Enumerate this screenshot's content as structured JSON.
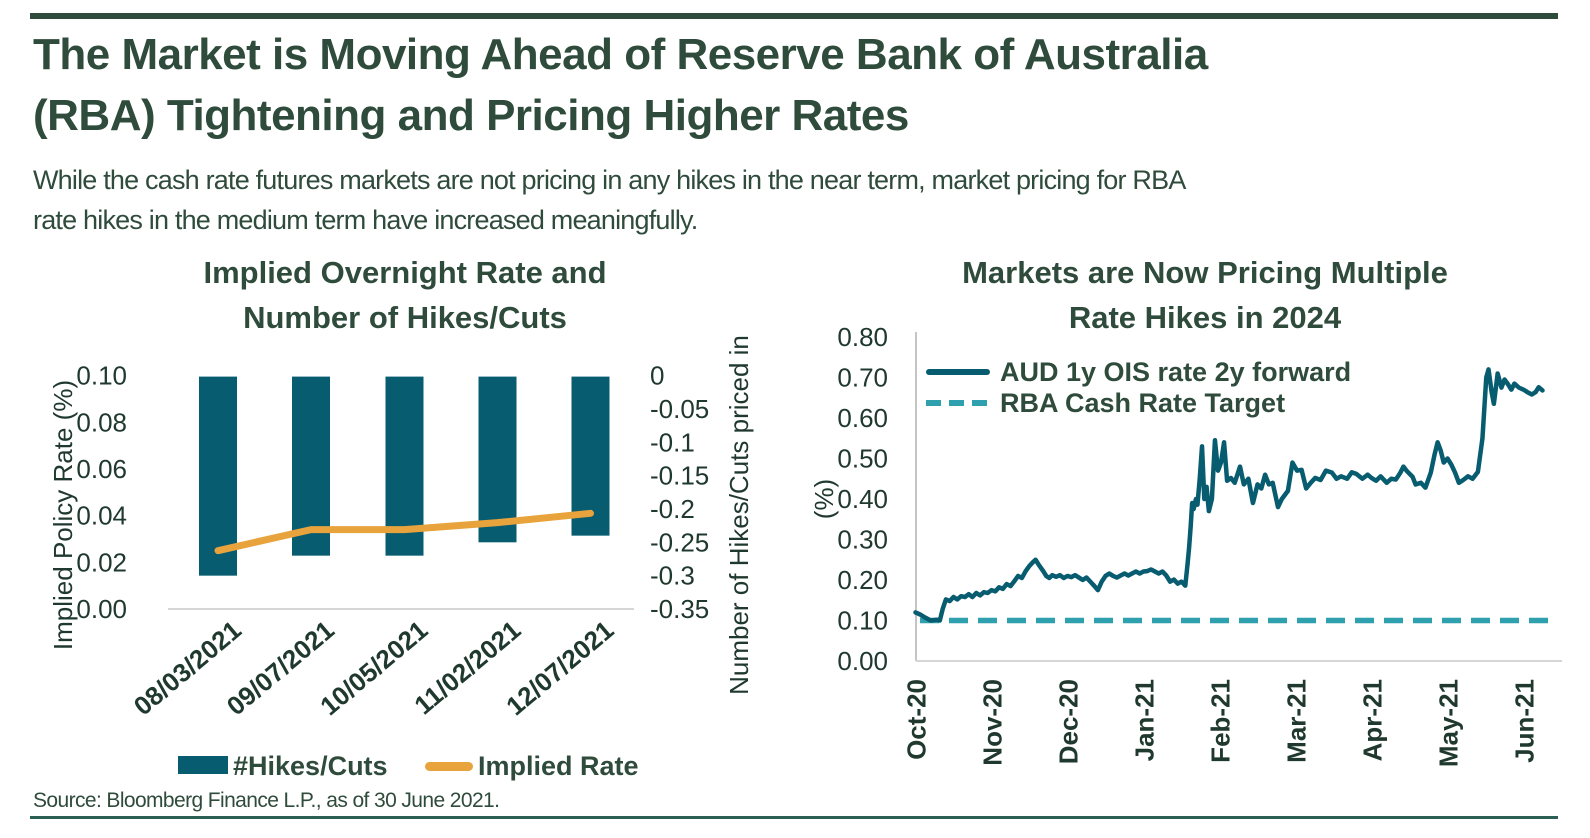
{
  "page": {
    "title": "The Market is Moving Ahead of Reserve Bank of Australia\n(RBA) Tightening and Pricing Higher Rates",
    "subtitle": "While the cash rate futures markets are not pricing in any hikes in the near term, market pricing for RBA\nrate hikes in the medium term have increased meaningfully.",
    "source": "Source: Bloomberg Finance L.P., as of 30 June 2021."
  },
  "colors": {
    "dark_green": "#2F4B3B",
    "axis_text": "#20392F",
    "teal": "#075C70",
    "light_teal": "#2FA0AD",
    "orange": "#E8A33C",
    "gridline": "#D6D6D6",
    "axis_line": "#C5C5C5",
    "rule": "#2C5F53"
  },
  "chart_data": [
    {
      "type": "bar",
      "title": "Implied Overnight Rate and\nNumber of Hikes/Cuts",
      "categories": [
        "08/03/2021",
        "09/07/2021",
        "10/05/2021",
        "11/02/2021",
        "12/07/2021"
      ],
      "series": [
        {
          "name": "#Hikes/Cuts",
          "type": "bar",
          "axis": "right",
          "values": [
            -0.3,
            -0.27,
            -0.27,
            -0.25,
            -0.24
          ]
        },
        {
          "name": "Implied Rate",
          "type": "line",
          "axis": "left",
          "values": [
            0.025,
            0.034,
            0.034,
            0.037,
            0.041
          ]
        }
      ],
      "left_axis": {
        "label": "Implied Policy Rate (%)",
        "ticks": [
          "0.10",
          "0.08",
          "0.06",
          "0.04",
          "0.02",
          "0.00"
        ],
        "min": 0,
        "max": 0.1
      },
      "right_axis": {
        "label": "Number of Hikes/Cuts priced in",
        "ticks": [
          "0",
          "-0.05",
          "-0.1",
          "-0.15",
          "-0.2",
          "-0.25",
          "-0.3",
          "-0.35"
        ],
        "min": -0.35,
        "max": 0
      },
      "grid": "baseline-only",
      "legend_position": "bottom"
    },
    {
      "type": "line",
      "title": "Markets are Now Pricing Multiple\nRate Hikes in 2024",
      "x_ticks": [
        "Oct-20",
        "Nov-20",
        "Dec-20",
        "Jan-21",
        "Feb-21",
        "Mar-21",
        "Apr-21",
        "May-21",
        "Jun-21"
      ],
      "y_axis": {
        "label": "(%)",
        "ticks": [
          "0.80",
          "0.70",
          "0.60",
          "0.50",
          "0.40",
          "0.30",
          "0.20",
          "0.10",
          "0.00"
        ],
        "min": 0,
        "max": 0.8
      },
      "legend_position": "top-left-inside",
      "series": [
        {
          "name": "AUD 1y OIS rate 2y forward",
          "style": "solid",
          "points": [
            [
              0,
              0.12
            ],
            [
              0.06,
              0.115
            ],
            [
              0.12,
              0.108
            ],
            [
              0.2,
              0.1
            ],
            [
              0.28,
              0.102
            ],
            [
              0.32,
              0.1
            ],
            [
              0.36,
              0.13
            ],
            [
              0.4,
              0.152
            ],
            [
              0.45,
              0.148
            ],
            [
              0.5,
              0.158
            ],
            [
              0.55,
              0.152
            ],
            [
              0.6,
              0.16
            ],
            [
              0.65,
              0.158
            ],
            [
              0.7,
              0.165
            ],
            [
              0.75,
              0.158
            ],
            [
              0.8,
              0.168
            ],
            [
              0.85,
              0.162
            ],
            [
              0.9,
              0.17
            ],
            [
              0.95,
              0.168
            ],
            [
              1.0,
              0.175
            ],
            [
              1.05,
              0.172
            ],
            [
              1.1,
              0.182
            ],
            [
              1.15,
              0.178
            ],
            [
              1.2,
              0.19
            ],
            [
              1.25,
              0.185
            ],
            [
              1.3,
              0.197
            ],
            [
              1.35,
              0.21
            ],
            [
              1.4,
              0.205
            ],
            [
              1.45,
              0.222
            ],
            [
              1.5,
              0.235
            ],
            [
              1.55,
              0.245
            ],
            [
              1.58,
              0.25
            ],
            [
              1.62,
              0.238
            ],
            [
              1.68,
              0.222
            ],
            [
              1.72,
              0.21
            ],
            [
              1.76,
              0.205
            ],
            [
              1.8,
              0.212
            ],
            [
              1.85,
              0.208
            ],
            [
              1.9,
              0.212
            ],
            [
              1.95,
              0.205
            ],
            [
              2.0,
              0.21
            ],
            [
              2.05,
              0.207
            ],
            [
              2.1,
              0.212
            ],
            [
              2.15,
              0.206
            ],
            [
              2.2,
              0.2
            ],
            [
              2.25,
              0.206
            ],
            [
              2.3,
              0.196
            ],
            [
              2.35,
              0.186
            ],
            [
              2.4,
              0.175
            ],
            [
              2.45,
              0.196
            ],
            [
              2.5,
              0.21
            ],
            [
              2.55,
              0.216
            ],
            [
              2.6,
              0.21
            ],
            [
              2.65,
              0.206
            ],
            [
              2.7,
              0.211
            ],
            [
              2.75,
              0.216
            ],
            [
              2.8,
              0.211
            ],
            [
              2.85,
              0.216
            ],
            [
              2.9,
              0.221
            ],
            [
              2.95,
              0.216
            ],
            [
              3.0,
              0.221
            ],
            [
              3.05,
              0.222
            ],
            [
              3.1,
              0.226
            ],
            [
              3.15,
              0.221
            ],
            [
              3.2,
              0.216
            ],
            [
              3.25,
              0.221
            ],
            [
              3.3,
              0.211
            ],
            [
              3.35,
              0.196
            ],
            [
              3.4,
              0.201
            ],
            [
              3.45,
              0.191
            ],
            [
              3.5,
              0.196
            ],
            [
              3.55,
              0.186
            ],
            [
              3.58,
              0.24
            ],
            [
              3.6,
              0.28
            ],
            [
              3.62,
              0.33
            ],
            [
              3.64,
              0.39
            ],
            [
              3.66,
              0.375
            ],
            [
              3.69,
              0.4
            ],
            [
              3.71,
              0.386
            ],
            [
              3.74,
              0.45
            ],
            [
              3.77,
              0.53
            ],
            [
              3.8,
              0.4
            ],
            [
              3.83,
              0.43
            ],
            [
              3.86,
              0.37
            ],
            [
              3.9,
              0.4
            ],
            [
              3.94,
              0.545
            ],
            [
              3.98,
              0.47
            ],
            [
              4.02,
              0.49
            ],
            [
              4.06,
              0.54
            ],
            [
              4.1,
              0.445
            ],
            [
              4.15,
              0.452
            ],
            [
              4.2,
              0.44
            ],
            [
              4.27,
              0.48
            ],
            [
              4.32,
              0.436
            ],
            [
              4.38,
              0.45
            ],
            [
              4.44,
              0.39
            ],
            [
              4.5,
              0.436
            ],
            [
              4.55,
              0.426
            ],
            [
              4.6,
              0.46
            ],
            [
              4.65,
              0.436
            ],
            [
              4.7,
              0.44
            ],
            [
              4.77,
              0.38
            ],
            [
              4.82,
              0.4
            ],
            [
              4.9,
              0.42
            ],
            [
              4.96,
              0.49
            ],
            [
              5.02,
              0.47
            ],
            [
              5.08,
              0.472
            ],
            [
              5.14,
              0.426
            ],
            [
              5.2,
              0.44
            ],
            [
              5.26,
              0.452
            ],
            [
              5.33,
              0.447
            ],
            [
              5.4,
              0.47
            ],
            [
              5.48,
              0.465
            ],
            [
              5.54,
              0.45
            ],
            [
              5.6,
              0.456
            ],
            [
              5.68,
              0.45
            ],
            [
              5.74,
              0.466
            ],
            [
              5.8,
              0.462
            ],
            [
              5.88,
              0.45
            ],
            [
              5.95,
              0.46
            ],
            [
              6.0,
              0.452
            ],
            [
              6.06,
              0.445
            ],
            [
              6.12,
              0.456
            ],
            [
              6.2,
              0.44
            ],
            [
              6.26,
              0.45
            ],
            [
              6.32,
              0.448
            ],
            [
              6.38,
              0.465
            ],
            [
              6.42,
              0.48
            ],
            [
              6.47,
              0.468
            ],
            [
              6.54,
              0.455
            ],
            [
              6.58,
              0.436
            ],
            [
              6.65,
              0.44
            ],
            [
              6.71,
              0.428
            ],
            [
              6.78,
              0.465
            ],
            [
              6.83,
              0.51
            ],
            [
              6.87,
              0.54
            ],
            [
              6.91,
              0.52
            ],
            [
              6.95,
              0.49
            ],
            [
              7.0,
              0.5
            ],
            [
              7.05,
              0.485
            ],
            [
              7.1,
              0.465
            ],
            [
              7.15,
              0.44
            ],
            [
              7.2,
              0.446
            ],
            [
              7.27,
              0.456
            ],
            [
              7.33,
              0.45
            ],
            [
              7.4,
              0.467
            ],
            [
              7.46,
              0.55
            ],
            [
              7.51,
              0.7
            ],
            [
              7.54,
              0.72
            ],
            [
              7.58,
              0.665
            ],
            [
              7.61,
              0.635
            ],
            [
              7.66,
              0.71
            ],
            [
              7.71,
              0.675
            ],
            [
              7.75,
              0.695
            ],
            [
              7.79,
              0.685
            ],
            [
              7.84,
              0.67
            ],
            [
              7.88,
              0.685
            ],
            [
              7.94,
              0.675
            ],
            [
              8.0,
              0.67
            ],
            [
              8.05,
              0.664
            ],
            [
              8.11,
              0.658
            ],
            [
              8.16,
              0.664
            ],
            [
              8.2,
              0.676
            ],
            [
              8.25,
              0.668
            ]
          ]
        },
        {
          "name": "RBA Cash Rate Target",
          "style": "dashed",
          "value": 0.1
        }
      ]
    }
  ]
}
